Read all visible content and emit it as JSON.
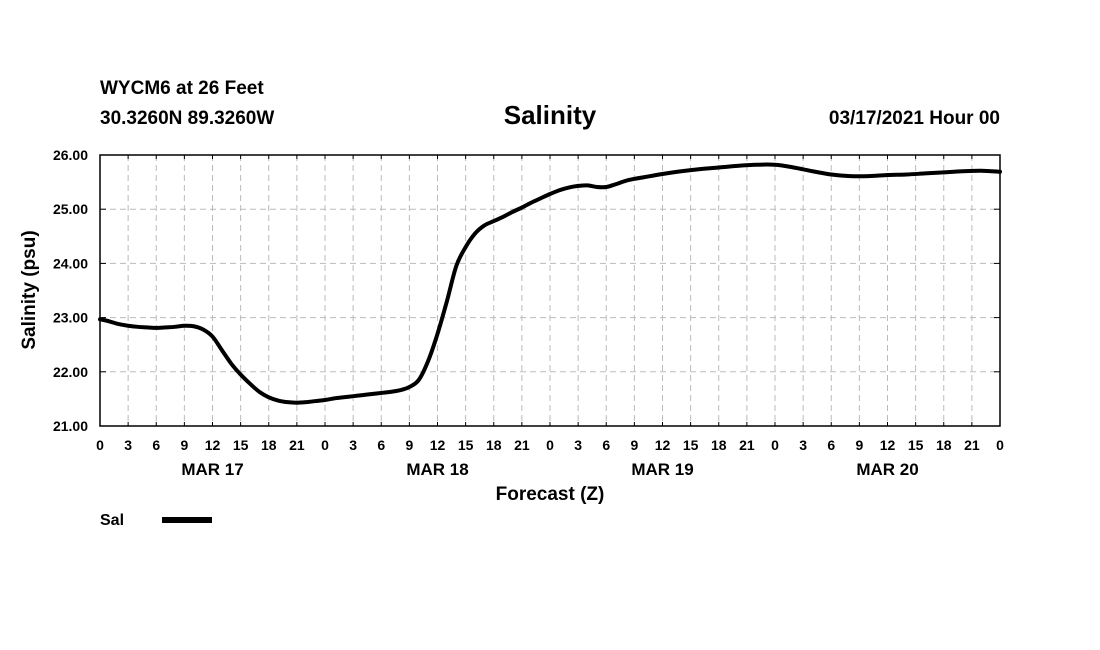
{
  "header": {
    "station": "WYCM6 at 26 Feet",
    "coords": "30.3260N 89.3260W",
    "title": "Salinity",
    "datetime": "03/17/2021 Hour 00"
  },
  "legend": {
    "label": "Sal"
  },
  "chart_data": {
    "type": "line",
    "title": "Salinity",
    "xlabel": "Forecast (Z)",
    "ylabel": "Salinity (psu)",
    "ylim": [
      21.0,
      26.0
    ],
    "xlim": [
      0,
      96
    ],
    "x_units": "forecast hours from 03/17/2021 00Z",
    "grid": true,
    "y_ticks": [
      "21.00",
      "22.00",
      "23.00",
      "24.00",
      "25.00",
      "26.00"
    ],
    "x_tick_labels": [
      "0",
      "3",
      "6",
      "9",
      "12",
      "15",
      "18",
      "21",
      "0",
      "3",
      "6",
      "9",
      "12",
      "15",
      "18",
      "21",
      "0",
      "3",
      "6",
      "9",
      "12",
      "15",
      "18",
      "21",
      "0",
      "3",
      "6",
      "9",
      "12",
      "15",
      "18",
      "21",
      "0"
    ],
    "day_labels": [
      {
        "label": "MAR 17",
        "hour": 12
      },
      {
        "label": "MAR 18",
        "hour": 36
      },
      {
        "label": "MAR 19",
        "hour": 60
      },
      {
        "label": "MAR 20",
        "hour": 84
      }
    ],
    "series": [
      {
        "name": "Sal",
        "color": "#000000",
        "x": [
          0,
          1,
          2,
          3,
          4,
          5,
          6,
          7,
          8,
          9,
          10,
          11,
          12,
          13,
          14,
          15,
          16,
          17,
          18,
          19,
          20,
          21,
          22,
          23,
          24,
          25,
          26,
          27,
          28,
          29,
          30,
          31,
          32,
          33,
          34,
          35,
          36,
          37,
          38,
          39,
          40,
          41,
          42,
          43,
          44,
          45,
          46,
          47,
          48,
          49,
          50,
          51,
          52,
          53,
          54,
          55,
          56,
          57,
          58,
          59,
          60,
          62,
          64,
          66,
          68,
          70,
          72,
          74,
          76,
          78,
          80,
          82,
          84,
          86,
          88,
          90,
          92,
          94,
          96
        ],
        "values": [
          22.97,
          22.93,
          22.88,
          22.85,
          22.83,
          22.82,
          22.81,
          22.82,
          22.83,
          22.85,
          22.84,
          22.78,
          22.65,
          22.4,
          22.15,
          21.95,
          21.78,
          21.63,
          21.53,
          21.47,
          21.44,
          21.43,
          21.44,
          21.46,
          21.48,
          21.51,
          21.53,
          21.55,
          21.57,
          21.59,
          21.61,
          21.63,
          21.66,
          21.72,
          21.85,
          22.2,
          22.7,
          23.3,
          23.95,
          24.3,
          24.55,
          24.7,
          24.78,
          24.86,
          24.95,
          25.03,
          25.12,
          25.2,
          25.28,
          25.35,
          25.4,
          25.43,
          25.44,
          25.41,
          25.41,
          25.46,
          25.52,
          25.56,
          25.59,
          25.62,
          25.65,
          25.7,
          25.74,
          25.77,
          25.8,
          25.82,
          25.82,
          25.77,
          25.7,
          25.64,
          25.61,
          25.61,
          25.63,
          25.64,
          25.66,
          25.68,
          25.7,
          25.71,
          25.69
        ]
      }
    ]
  }
}
